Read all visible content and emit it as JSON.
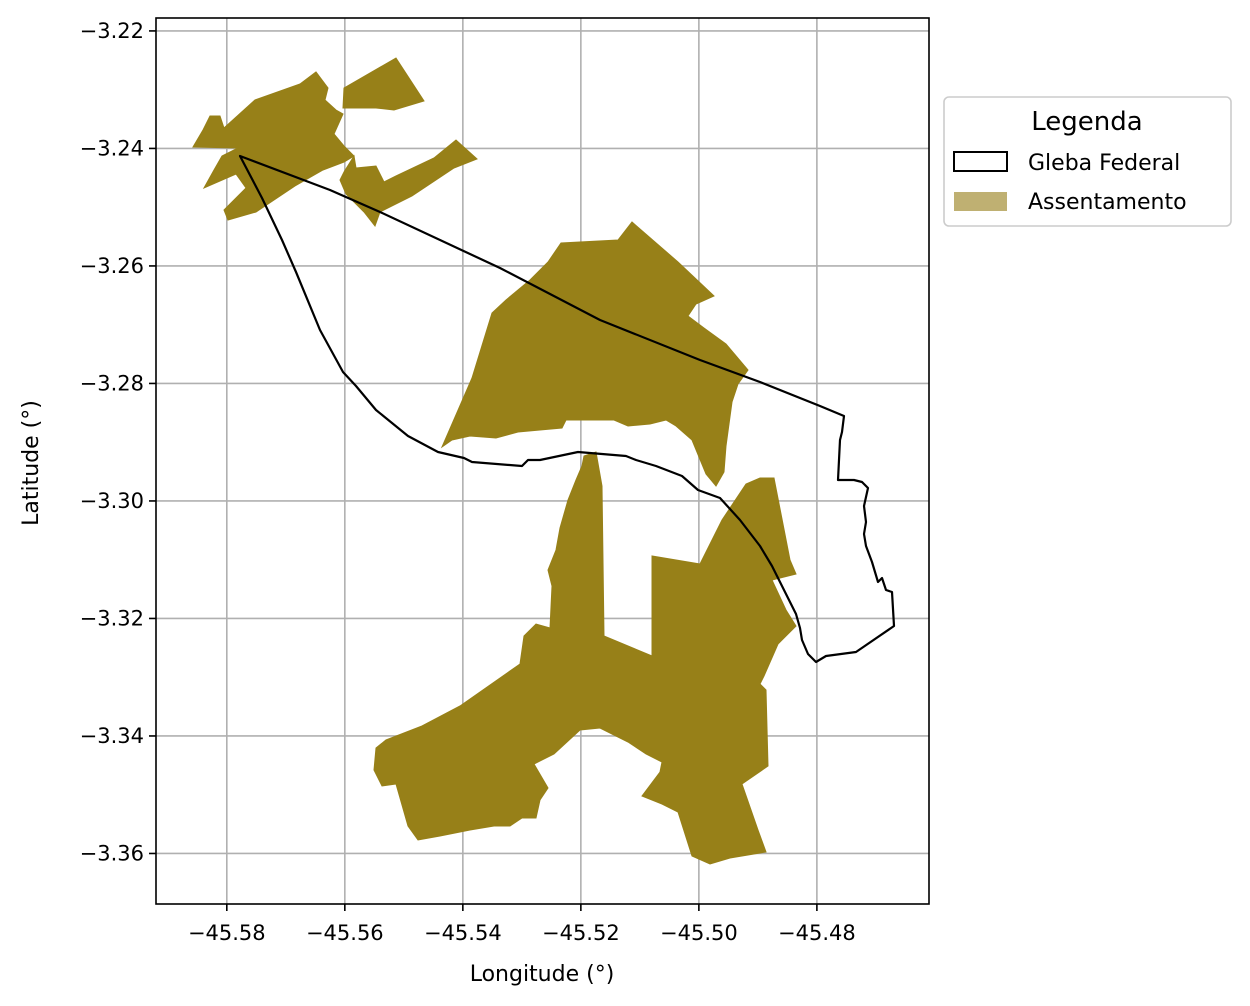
{
  "chart_data": {
    "type": "map",
    "xlabel": "Longitude (°)",
    "ylabel": "Latitude (°)",
    "xlim": [
      -45.592,
      -45.461
    ],
    "ylim": [
      -3.3686,
      -3.2178
    ],
    "grid": true,
    "legend_placement": "outside-right-top",
    "xticks": [
      -45.58,
      -45.56,
      -45.54,
      -45.52,
      -45.5,
      -45.48
    ],
    "xtick_labels": [
      "−45.58",
      "−45.56",
      "−45.54",
      "−45.52",
      "−45.50",
      "−45.48"
    ],
    "yticks": [
      -3.22,
      -3.24,
      -3.26,
      -3.28,
      -3.3,
      -3.32,
      -3.34,
      -3.36
    ],
    "ytick_labels": [
      "−3.22",
      "−3.24",
      "−3.26",
      "−3.28",
      "−3.30",
      "−3.32",
      "−3.34",
      "−3.36"
    ],
    "legend": {
      "title": "Legenda",
      "items": [
        {
          "label": "Gleba Federal",
          "kind": "outline"
        },
        {
          "label": "Assentamento",
          "kind": "fill"
        }
      ]
    },
    "colors": {
      "assentamento_fill": "#978018",
      "assentamento_legend": "#bfb072",
      "gleba_outline": "#000000",
      "grid": "#b0b0b0"
    },
    "layers": [
      {
        "name": "Gleba Federal",
        "style": "outline",
        "polygons": [
          [
            [
              -45.5778,
              -3.2418
            ],
            [
              -45.5714,
              -3.2595
            ],
            [
              -45.5693,
              -3.2662
            ],
            [
              -45.5638,
              -3.2781
            ],
            [
              -45.5605,
              -3.2826
            ],
            [
              -45.5558,
              -3.2856
            ],
            [
              -45.5473,
              -3.2906
            ],
            [
              -45.5414,
              -3.2928
            ],
            [
              -45.5302,
              -3.2934
            ],
            [
              -45.528,
              -3.2926
            ],
            [
              -45.5187,
              -3.2915
            ],
            [
              -45.5083,
              -3.2924
            ],
            [
              -45.4981,
              -3.2987
            ],
            [
              -45.4938,
              -3.3013
            ],
            [
              -45.4893,
              -3.3073
            ],
            [
              -45.4832,
              -3.3193
            ],
            [
              -45.4802,
              -3.3275
            ],
            [
              -45.4771,
              -3.3255
            ],
            [
              -45.4723,
              -3.3247
            ],
            [
              -45.4659,
              -3.321
            ],
            [
              -45.4659,
              -3.3165
            ],
            [
              -45.4681,
              -3.3152
            ],
            [
              -45.4691,
              -3.3137
            ],
            [
              -45.4708,
              -3.308
            ],
            [
              -45.4723,
              -3.303
            ],
            [
              -45.4712,
              -3.2985
            ],
            [
              -45.4752,
              -3.2965
            ],
            [
              -45.4785,
              -3.2964
            ],
            [
              -45.4787,
              -3.2908
            ],
            [
              -45.4788,
              -3.287
            ],
            [
              -45.4787,
              -3.2858
            ],
            [
              -45.493,
              -3.2798
            ],
            [
              -45.575,
              -3.2415
            ],
            [
              -45.5778,
              -3.2418
            ]
          ]
        ]
      },
      {
        "name": "Assentamento",
        "style": "fill",
        "polygons": [
          [
            [
              -45.5856,
              -3.2401
            ],
            [
              -45.582,
              -3.2358
            ],
            [
              -45.5806,
              -3.2353
            ],
            [
              -45.5771,
              -3.2353
            ],
            [
              -45.5773,
              -3.2371
            ],
            [
              -45.5805,
              -3.2408
            ],
            [
              -45.5818,
              -3.2452
            ],
            [
              -45.584,
              -3.2468
            ],
            [
              -45.58,
              -3.24
            ],
            [
              -45.5856,
              -3.2401
            ]
          ],
          [
            [
              -45.579,
              -3.237
            ],
            [
              -45.5756,
              -3.2339
            ],
            [
              -45.5648,
              -3.2278
            ],
            [
              -45.5617,
              -3.2264
            ],
            [
              -45.5612,
              -3.229
            ],
            [
              -45.5573,
              -3.2312
            ],
            [
              -45.557,
              -3.234
            ],
            [
              -45.5535,
              -3.2381
            ],
            [
              -45.5527,
              -3.2398
            ],
            [
              -45.5568,
              -3.2444
            ],
            [
              -45.5642,
              -3.2502
            ],
            [
              -45.5708,
              -3.2522
            ],
            [
              -45.5772,
              -3.2461
            ],
            [
              -45.5786,
              -3.243
            ],
            [
              -45.579,
              -3.237
            ]
          ],
          [
            [
              -45.5773,
              -3.2365
            ],
            [
              -45.5672,
              -3.23
            ],
            [
              -45.5608,
              -3.2282
            ],
            [
              -45.5596,
              -3.2283
            ],
            [
              -45.557,
              -3.2305
            ],
            [
              -45.5552,
              -3.232
            ],
            [
              -45.5478,
              -3.231
            ],
            [
              -45.544,
              -3.2315
            ],
            [
              -45.5452,
              -3.238
            ],
            [
              -45.547,
              -3.2391
            ],
            [
              -45.55,
              -3.2408
            ],
            [
              -45.5553,
              -3.2457
            ],
            [
              -45.5592,
              -3.253
            ],
            [
              -45.5617,
              -3.2528
            ],
            [
              -45.5706,
              -3.2473
            ],
            [
              -45.5773,
              -3.2365
            ]
          ],
          [
            [
              -45.5395,
              -3.2278
            ],
            [
              -45.5421,
              -3.2324
            ],
            [
              -45.5477,
              -3.2296
            ],
            [
              -45.5515,
              -3.2293
            ],
            [
              -45.5563,
              -3.2264
            ],
            [
              -45.5607,
              -3.2249
            ],
            [
              -45.5646,
              -3.226
            ],
            [
              -45.5714,
              -3.2261
            ],
            [
              -45.5695,
              -3.2287
            ],
            [
              -45.554,
              -3.2296
            ],
            [
              -45.5395,
              -3.2278
            ]
          ],
          [
            [
              -45.553,
              -3.2408
            ],
            [
              -45.5504,
              -3.2369
            ],
            [
              -45.5486,
              -3.2363
            ],
            [
              -45.5448,
              -3.238
            ],
            [
              -45.5406,
              -3.2414
            ],
            [
              -45.5357,
              -3.2438
            ],
            [
              -45.5327,
              -3.2462
            ],
            [
              -45.5265,
              -3.2508
            ],
            [
              -45.5216,
              -3.2537
            ],
            [
              -45.5195,
              -3.2547
            ],
            [
              -45.518,
              -3.253
            ],
            [
              -45.5264,
              -3.2432
            ],
            [
              -45.5305,
              -3.24
            ],
            [
              -45.5367,
              -3.2383
            ],
            [
              -45.5416,
              -3.2362
            ],
            [
              -45.5468,
              -3.2357
            ],
            [
              -45.553,
              -3.2408
            ]
          ],
          [
            [
              -45.5451,
              -3.2382
            ],
            [
              -45.5409,
              -3.2338
            ],
            [
              -45.5364,
              -3.2313
            ],
            [
              -45.5339,
              -3.2305
            ],
            [
              -45.5285,
              -3.2313
            ],
            [
              -45.528,
              -3.2347
            ],
            [
              -45.534,
              -3.2379
            ],
            [
              -45.5392,
              -3.2393
            ],
            [
              -45.5451,
              -3.2382
            ]
          ],
          [
            [
              -45.5465,
              -3.2902
            ],
            [
              -45.5424,
              -3.2796
            ],
            [
              -45.5392,
              -3.2716
            ],
            [
              -45.5365,
              -3.2664
            ],
            [
              -45.5353,
              -3.262
            ],
            [
              -45.5274,
              -3.2563
            ],
            [
              -45.5238,
              -3.2545
            ],
            [
              -45.5202,
              -3.2509
            ],
            [
              -45.5113,
              -3.2493
            ],
            [
              -45.5045,
              -3.2578
            ],
            [
              -45.499,
              -3.2655
            ],
            [
              -45.504,
              -3.274
            ],
            [
              -45.5053,
              -3.278
            ],
            [
              -45.5092,
              -3.283
            ],
            [
              -45.513,
              -3.2895
            ],
            [
              -45.516,
              -3.2902
            ],
            [
              -45.5211,
              -3.2898
            ],
            [
              -45.5298,
              -3.2899
            ],
            [
              -45.533,
              -3.2882
            ],
            [
              -45.5382,
              -3.2892
            ],
            [
              -45.5465,
              -3.2902
            ]
          ],
          [
            [
              -45.511,
              -3.2884
            ],
            [
              -45.504,
              -3.2806
            ],
            [
              -45.5024,
              -3.2756
            ],
            [
              -45.4991,
              -3.2722
            ],
            [
              -45.4935,
              -3.2773
            ],
            [
              -45.4928,
              -3.2799
            ],
            [
              -45.4912,
              -3.2882
            ],
            [
              -45.4924,
              -3.2932
            ],
            [
              -45.4952,
              -3.2951
            ],
            [
              -45.498,
              -3.2968
            ],
            [
              -45.5,
              -3.2912
            ],
            [
              -45.505,
              -3.2893
            ],
            [
              -45.511,
              -3.2884
            ]
          ],
          [
            [
              -45.5185,
              -3.3025
            ],
            [
              -45.5191,
              -3.2922
            ],
            [
              -45.5167,
              -3.2895
            ],
            [
              -45.5159,
              -3.2951
            ],
            [
              -45.5147,
              -3.3022
            ],
            [
              -45.5124,
              -3.3055
            ],
            [
              -45.51,
              -3.3198
            ],
            [
              -45.5069,
              -3.3253
            ],
            [
              -45.5037,
              -3.3262
            ],
            [
              -45.4957,
              -3.3265
            ],
            [
              -45.4895,
              -3.3272
            ],
            [
              -45.4833,
              -3.322
            ],
            [
              -45.4812,
              -3.3177
            ],
            [
              -45.4828,
              -3.312
            ],
            [
              -45.4862,
              -3.3046
            ],
            [
              -45.4883,
              -3.2972
            ],
            [
              -45.4935,
              -3.2962
            ],
            [
              -45.498,
              -3.3041
            ],
            [
              -45.5,
              -3.3138
            ],
            [
              -45.501,
              -3.327
            ],
            [
              -45.5062,
              -3.3246
            ],
            [
              -45.5103,
              -3.3199
            ],
            [
              -45.5128,
              -3.316
            ],
            [
              -45.5147,
              -3.3118
            ],
            [
              -45.5156,
              -3.3051
            ],
            [
              -45.5185,
              -3.3025
            ]
          ],
          [
            [
              -45.5197,
              -3.3045
            ],
            [
              -45.5176,
              -3.3019
            ],
            [
              -45.5169,
              -3.3062
            ],
            [
              -45.5152,
              -3.311
            ],
            [
              -45.514,
              -3.3136
            ],
            [
              -45.513,
              -3.3175
            ],
            [
              -45.512,
              -3.3232
            ],
            [
              -45.5092,
              -3.3226
            ],
            [
              -45.5035,
              -3.324
            ],
            [
              -45.4954,
              -3.3268
            ],
            [
              -45.4912,
              -3.3298
            ],
            [
              -45.491,
              -3.3414
            ],
            [
              -45.4917,
              -3.3467
            ],
            [
              -45.4985,
              -3.3499
            ],
            [
              -45.5011,
              -3.3567
            ],
            [
              -45.505,
              -3.357
            ],
            [
              -45.5053,
              -3.3602
            ],
            [
              -45.5128,
              -3.361
            ],
            [
              -45.5156,
              -3.3557
            ],
            [
              -45.522,
              -3.3543
            ],
            [
              -45.5283,
              -3.3512
            ],
            [
              -45.5346,
              -3.3486
            ],
            [
              -45.538,
              -3.3445
            ],
            [
              -45.5386,
              -3.3407
            ],
            [
              -45.5446,
              -3.3367
            ],
            [
              -45.5497,
              -3.3349
            ],
            [
              -45.556,
              -3.3354
            ],
            [
              -45.5624,
              -3.3337
            ],
            [
              -45.5673,
              -3.3303
            ],
            [
              -45.5703,
              -3.3268
            ],
            [
              -45.5729,
              -3.321
            ],
            [
              -45.5716,
              -3.3172
            ],
            [
              -45.5727,
              -3.3124
            ],
            [
              -45.5702,
              -3.3052
            ],
            [
              -45.5673,
              -3.2996
            ],
            [
              -45.5604,
              -3.2978
            ],
            [
              -45.5566,
              -3.2964
            ],
            [
              -45.5523,
              -3.2995
            ],
            [
              -45.5486,
              -3.3045
            ],
            [
              -45.5462,
              -3.3058
            ],
            [
              -45.5376,
              -3.3094
            ],
            [
              -45.5253,
              -3.3131
            ],
            [
              -45.5197,
              -3.3045
            ]
          ]
        ]
      }
    ]
  }
}
